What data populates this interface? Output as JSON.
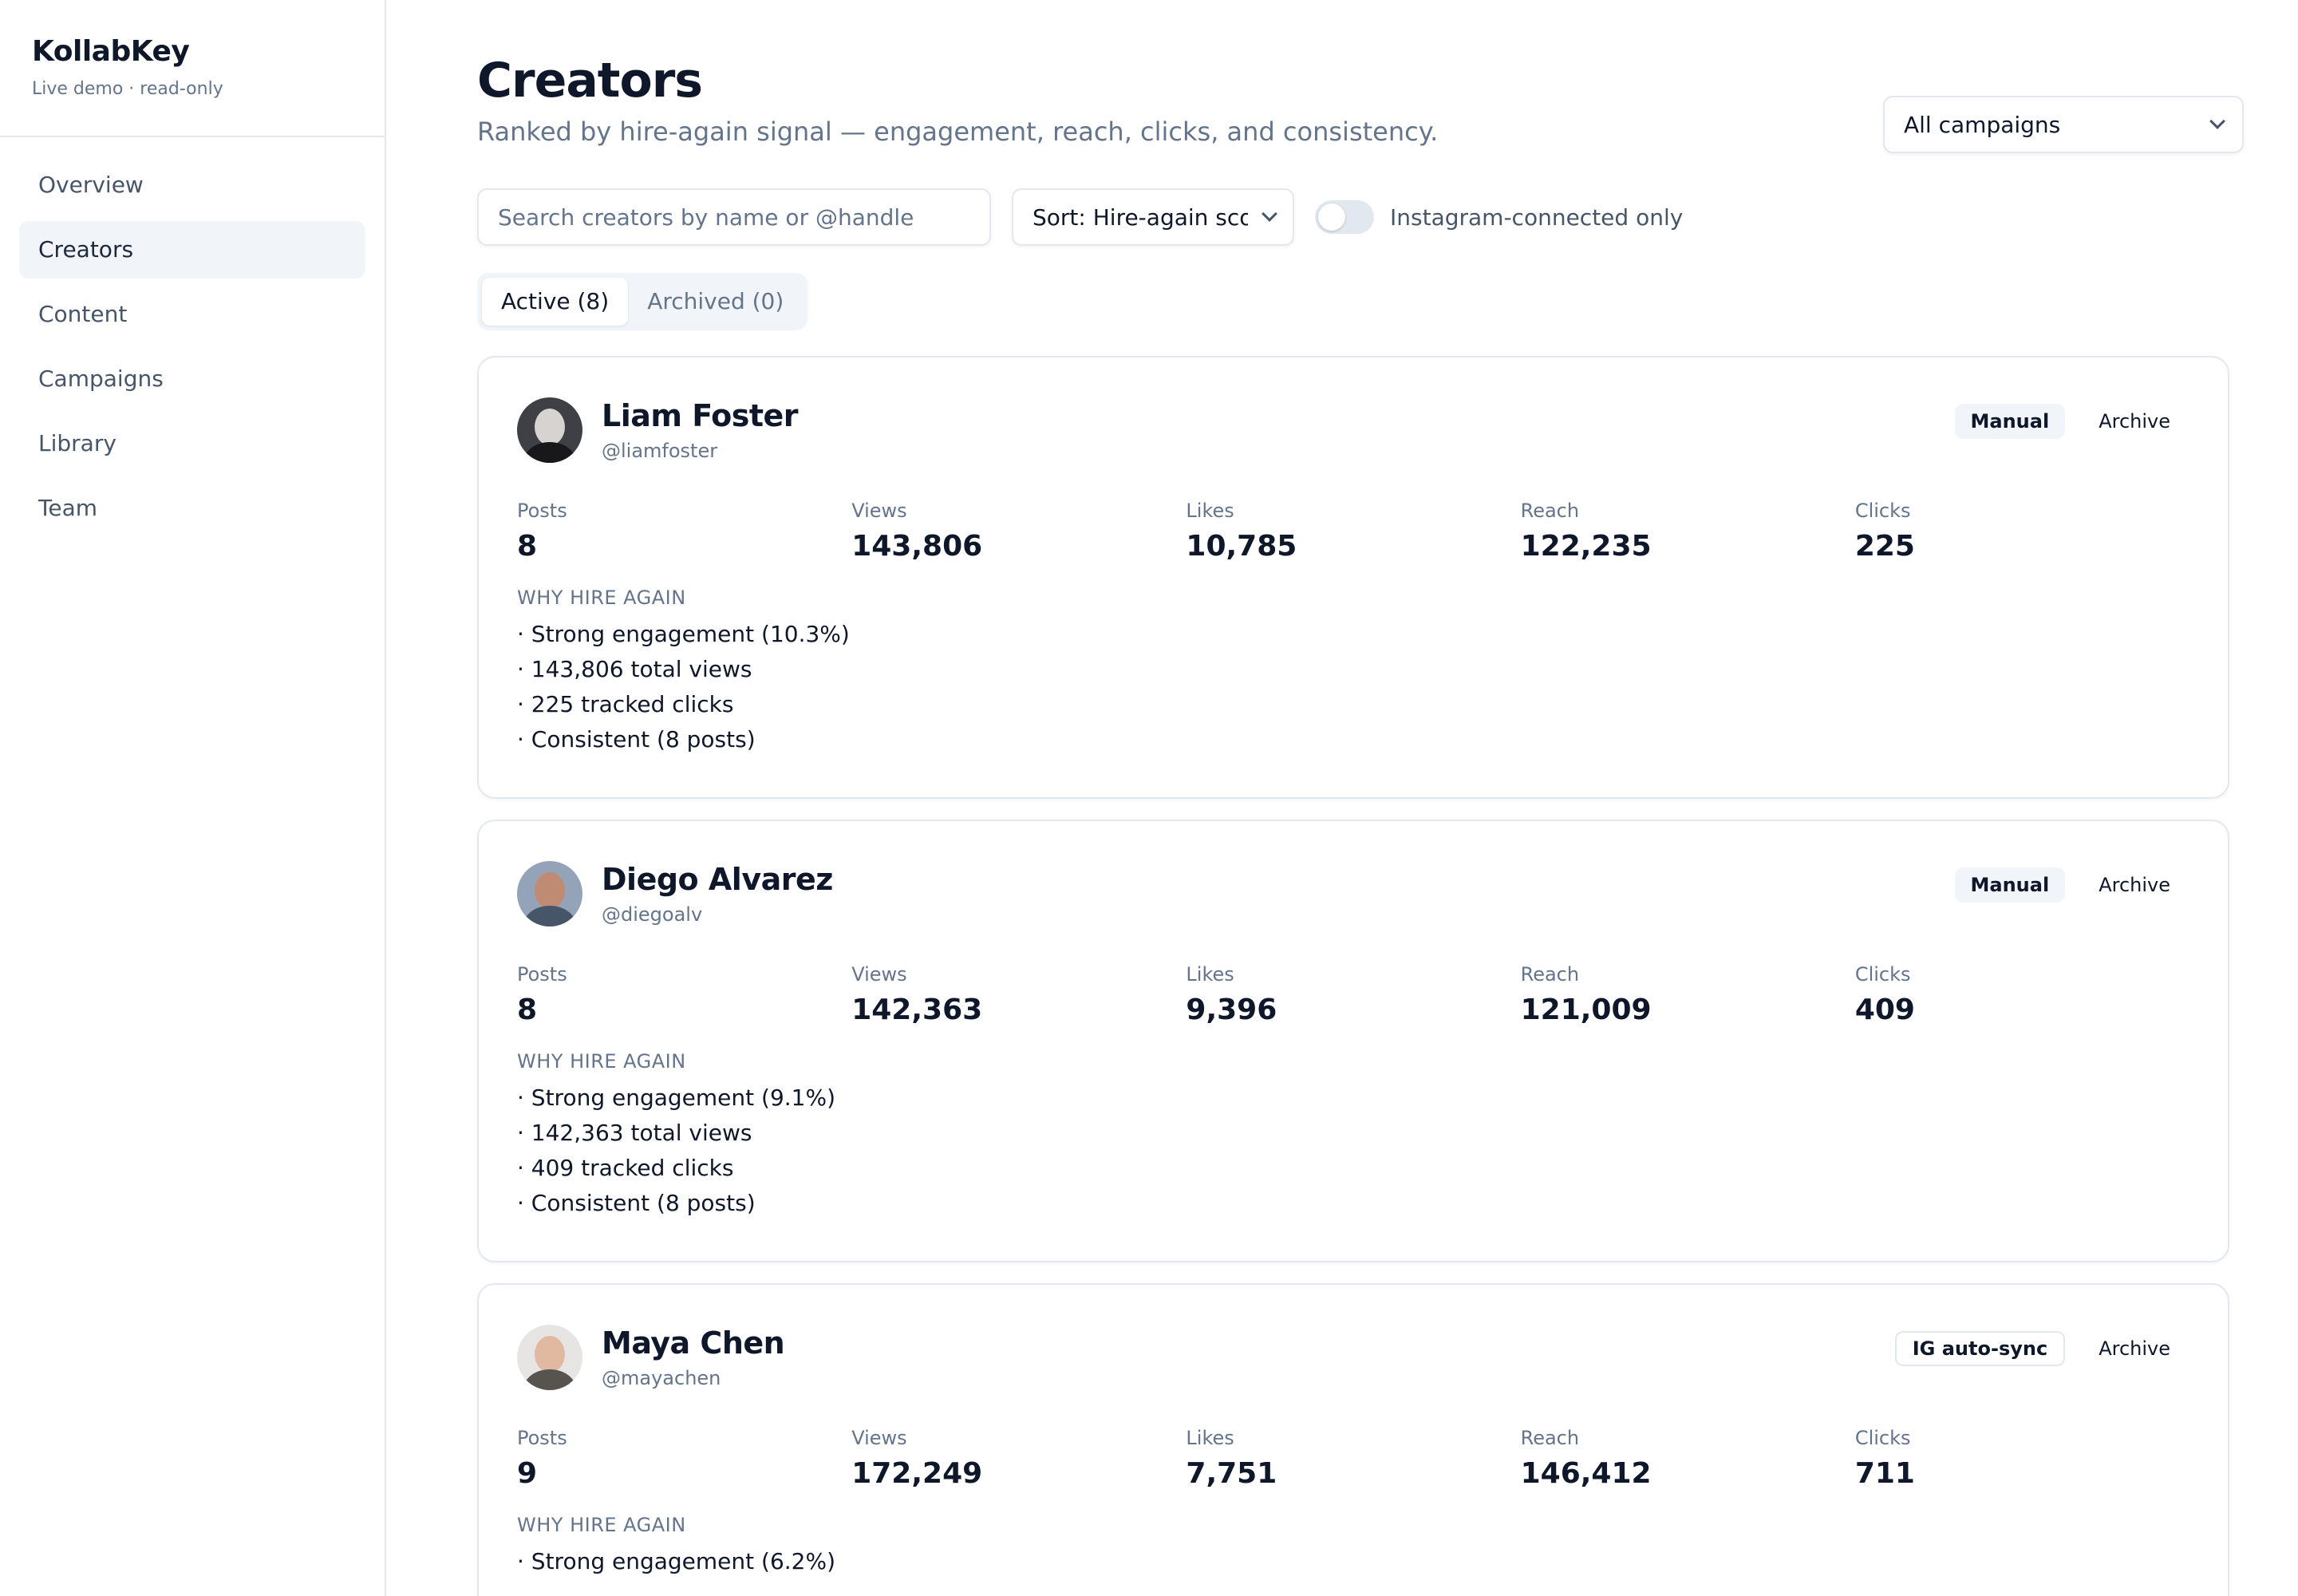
{
  "sidebar": {
    "brand": "KollabKey",
    "subtitle": "Live demo · read-only",
    "items": [
      {
        "label": "Overview"
      },
      {
        "label": "Creators"
      },
      {
        "label": "Content"
      },
      {
        "label": "Campaigns"
      },
      {
        "label": "Library"
      },
      {
        "label": "Team"
      }
    ]
  },
  "header": {
    "title": "Creators",
    "subtitle": "Ranked by hire-again signal — engagement, reach, clicks, and consistency.",
    "campaign_select": "All campaigns"
  },
  "toolbar": {
    "search_placeholder": "Search creators by name or @handle",
    "sort_label": "Sort: Hire-again score",
    "toggle_label": "Instagram-connected only"
  },
  "tabs": [
    {
      "label": "Active (8)"
    },
    {
      "label": "Archived (0)"
    }
  ],
  "stat_labels": {
    "posts": "Posts",
    "views": "Views",
    "likes": "Likes",
    "reach": "Reach",
    "clicks": "Clicks"
  },
  "why_label": "WHY HIRE AGAIN",
  "archive_label": "Archive",
  "creators": [
    {
      "name": "Liam Foster",
      "handle": "@liamfoster",
      "badge": "Manual",
      "posts": "8",
      "views": "143,806",
      "likes": "10,785",
      "reach": "122,235",
      "clicks": "225",
      "why": [
        "· Strong engagement (10.3%)",
        "· 143,806 total views",
        "· 225 tracked clicks",
        "· Consistent (8 posts)"
      ]
    },
    {
      "name": "Diego Alvarez",
      "handle": "@diegoalv",
      "badge": "Manual",
      "posts": "8",
      "views": "142,363",
      "likes": "9,396",
      "reach": "121,009",
      "clicks": "409",
      "why": [
        "· Strong engagement (9.1%)",
        "· 142,363 total views",
        "· 409 tracked clicks",
        "· Consistent (8 posts)"
      ]
    },
    {
      "name": "Maya Chen",
      "handle": "@mayachen",
      "badge": "IG auto-sync",
      "posts": "9",
      "views": "172,249",
      "likes": "7,751",
      "reach": "146,412",
      "clicks": "711",
      "why": [
        "· Strong engagement (6.2%)"
      ]
    }
  ]
}
